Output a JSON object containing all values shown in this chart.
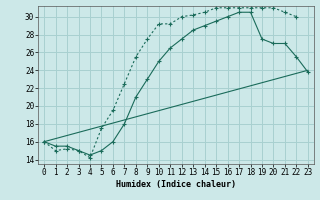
{
  "title": "",
  "xlabel": "Humidex (Indice chaleur)",
  "bg_color": "#cce8e8",
  "grid_color": "#a8d0d0",
  "line_color": "#1a6b5a",
  "xlim": [
    -0.5,
    23.5
  ],
  "ylim": [
    13.5,
    31.2
  ],
  "yticks": [
    14,
    16,
    18,
    20,
    22,
    24,
    26,
    28,
    30
  ],
  "xticks": [
    0,
    1,
    2,
    3,
    4,
    5,
    6,
    7,
    8,
    9,
    10,
    11,
    12,
    13,
    14,
    15,
    16,
    17,
    18,
    19,
    20,
    21,
    22,
    23
  ],
  "line1_x": [
    0,
    1,
    2,
    3,
    4,
    5,
    6,
    7,
    8,
    9,
    10,
    11,
    12,
    13,
    14,
    15,
    16,
    17,
    18,
    19,
    20,
    21,
    22
  ],
  "line1_y": [
    16,
    15,
    15.2,
    15,
    14.2,
    17.5,
    19.5,
    22.5,
    25.5,
    27.5,
    29.2,
    29.2,
    30,
    30.2,
    30.5,
    31,
    31,
    31,
    31,
    31,
    31,
    30.5,
    30
  ],
  "line2_x": [
    0,
    1,
    2,
    3,
    4,
    5,
    6,
    7,
    8,
    9,
    10,
    11,
    12,
    13,
    14,
    15,
    16,
    17,
    18,
    19,
    20,
    21,
    22,
    23
  ],
  "line2_y": [
    16,
    15.5,
    15.5,
    15,
    14.5,
    15,
    16,
    18,
    21,
    23,
    25,
    26.5,
    27.5,
    28.5,
    29,
    29.5,
    30,
    30.5,
    30.5,
    27.5,
    27,
    27,
    25.5,
    23.8
  ],
  "line3_x": [
    0,
    23
  ],
  "line3_y": [
    16,
    24
  ]
}
